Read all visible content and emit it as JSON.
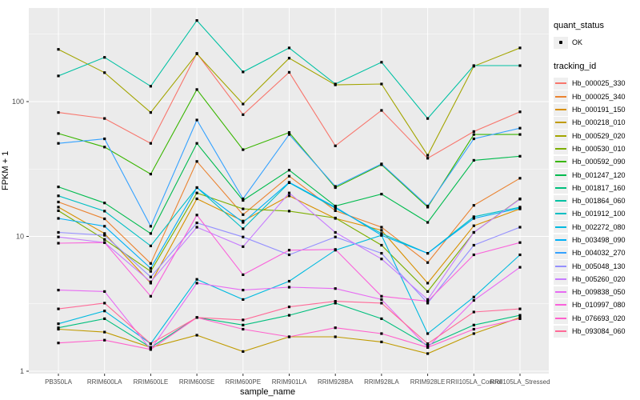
{
  "figure": {
    "xlabel": "sample_name",
    "ylabel": "FPKM + 1",
    "y_scale": "log10",
    "y_tick_labels": [
      "1",
      "10",
      "100"
    ],
    "grid": "major+minor white on gray panel",
    "legend_position": "right"
  },
  "legend": {
    "quant_status_title": "quant_status",
    "quant_status_items": [
      {
        "label": "OK",
        "marker": "black-point"
      }
    ],
    "tracking_id_title": "tracking_id"
  },
  "colors": {
    "panel_bg": "#EBEBEB",
    "gridline": "#FFFFFF",
    "axis_text": "#4D4D4D",
    "axis_tick": "#333333",
    "point": "#000000",
    "legend_key_bg": "#EFEFEF"
  },
  "chart_data": {
    "type": "line",
    "title": "",
    "xlabel": "sample_name",
    "ylabel": "FPKM + 1",
    "y_scale": "log10",
    "ylim": [
      1,
      500
    ],
    "y_major_ticks": [
      1,
      10,
      100
    ],
    "y_minor_ticks": [
      3.162,
      31.62,
      316.2
    ],
    "marker": "black point (quant_status OK) at every value",
    "categories": [
      "PB350LA",
      "RRIM600LA",
      "RRIM600LE",
      "RRIM600SE",
      "RRIM600PE",
      "RRIM901LA",
      "RRIM928BA",
      "RRIM928LA",
      "RRIM928LE",
      "RRII105LA_Control",
      "RRII105LA_Stressed"
    ],
    "series": [
      {
        "name": "Hb_000025_330",
        "color": "#F8766D",
        "values": [
          83,
          75,
          49,
          228,
          80,
          165,
          47,
          86,
          38,
          60,
          84
        ]
      },
      {
        "name": "Hb_000025_340",
        "color": "#EA8331",
        "values": [
          18,
          13.5,
          6.3,
          36,
          14.5,
          28,
          15.5,
          11.7,
          6.4,
          17,
          27
        ]
      },
      {
        "name": "Hb_000191_150",
        "color": "#D89000",
        "values": [
          16.5,
          10.5,
          4.5,
          19,
          13,
          20,
          13.6,
          11.1,
          4.5,
          12,
          16
        ]
      },
      {
        "name": "Hb_000218_010",
        "color": "#C09B00",
        "values": [
          2.05,
          1.95,
          1.5,
          1.85,
          1.4,
          1.8,
          1.8,
          1.65,
          1.35,
          1.9,
          2.5
        ]
      },
      {
        "name": "Hb_000529_020",
        "color": "#A3A500",
        "values": [
          244,
          164,
          83,
          226,
          96,
          210,
          133,
          135,
          40,
          183,
          250
        ]
      },
      {
        "name": "Hb_000530_010",
        "color": "#7CAE00",
        "values": [
          15.5,
          9.5,
          5.5,
          21,
          16,
          15.4,
          13.7,
          8.6,
          3.9,
          10.7,
          19
        ]
      },
      {
        "name": "Hb_000592_090",
        "color": "#39B600",
        "values": [
          58,
          46,
          29,
          123,
          44,
          59,
          23,
          34,
          16.5,
          57,
          57
        ]
      },
      {
        "name": "Hb_001247_120",
        "color": "#00BB4E",
        "values": [
          23.3,
          17.7,
          10.5,
          49,
          18.5,
          31,
          16.8,
          20.6,
          12.7,
          36.7,
          39.3
        ]
      },
      {
        "name": "Hb_001817_160",
        "color": "#00BF7D",
        "values": [
          2.1,
          2.45,
          1.5,
          2.5,
          2.2,
          2.6,
          3.2,
          2.45,
          1.55,
          2.2,
          2.6
        ]
      },
      {
        "name": "Hb_001864_060",
        "color": "#00C1A3",
        "values": [
          155,
          213,
          130,
          400,
          166,
          250,
          135,
          196,
          75,
          185,
          185
        ]
      },
      {
        "name": "Hb_001912_100",
        "color": "#00BFC4",
        "values": [
          20,
          15.4,
          8.5,
          23,
          11.4,
          25,
          16.2,
          10.5,
          7.5,
          14,
          16.5
        ]
      },
      {
        "name": "Hb_002272_080",
        "color": "#00BAE0",
        "values": [
          2.25,
          2.8,
          1.6,
          4.8,
          3.4,
          4.65,
          7.9,
          10.2,
          1.9,
          3.55,
          7.3
        ]
      },
      {
        "name": "Hb_003498_090",
        "color": "#00B0F6",
        "values": [
          13.6,
          11.9,
          5.8,
          23,
          12.7,
          25.2,
          16.5,
          10.2,
          7.5,
          13.6,
          16.2
        ]
      },
      {
        "name": "Hb_004032_270",
        "color": "#35A2FF",
        "values": [
          49,
          53,
          11.9,
          73,
          19,
          57,
          23.5,
          34.5,
          16.8,
          53,
          63.5
        ]
      },
      {
        "name": "Hb_005048_130",
        "color": "#9590FF",
        "values": [
          10.7,
          10.2,
          5.0,
          12.6,
          9.9,
          7.3,
          9.9,
          7.5,
          3.2,
          8.6,
          11.7
        ]
      },
      {
        "name": "Hb_005260_020",
        "color": "#C77CFF",
        "values": [
          9.9,
          9.0,
          4.6,
          11.7,
          8.4,
          21,
          10.7,
          6.8,
          3.4,
          10.7,
          18.9
        ]
      },
      {
        "name": "Hb_009838_050",
        "color": "#E76BF3",
        "values": [
          4.0,
          3.9,
          1.45,
          4.5,
          4.0,
          4.2,
          4.1,
          3.4,
          1.5,
          3.35,
          5.9
        ]
      },
      {
        "name": "Hb_010997_080",
        "color": "#FA62DB",
        "values": [
          8.9,
          9.0,
          3.6,
          14.4,
          5.2,
          7.9,
          8.0,
          3.6,
          3.3,
          7.3,
          9.0
        ]
      },
      {
        "name": "Hb_076693_020",
        "color": "#FF61CC",
        "values": [
          1.62,
          1.7,
          1.45,
          2.5,
          2.05,
          1.8,
          2.1,
          1.9,
          1.5,
          2.05,
          2.45
        ]
      },
      {
        "name": "Hb_093084_060",
        "color": "#FF6A98",
        "values": [
          2.9,
          3.2,
          1.6,
          2.5,
          2.4,
          3.0,
          3.3,
          3.2,
          1.6,
          2.75,
          2.9
        ]
      }
    ]
  }
}
